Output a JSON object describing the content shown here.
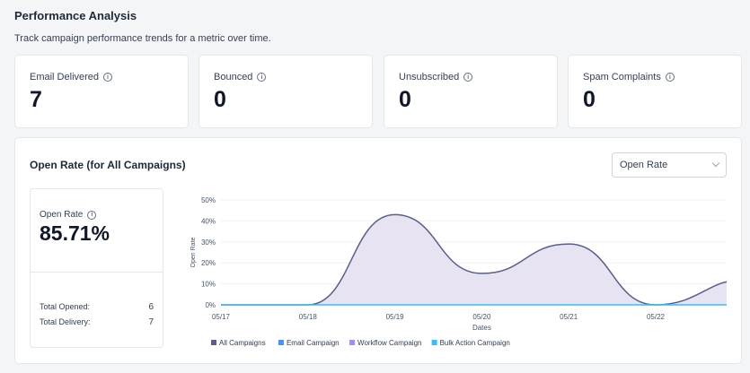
{
  "header": {
    "title": "Performance Analysis",
    "subtitle": "Track campaign performance trends for a metric over time."
  },
  "metrics": [
    {
      "label": "Email Delivered",
      "value": "7"
    },
    {
      "label": "Bounced",
      "value": "0"
    },
    {
      "label": "Unsubscribed",
      "value": "0"
    },
    {
      "label": "Spam Complaints",
      "value": "0"
    }
  ],
  "chart_section": {
    "title": "Open Rate (for All Campaigns)",
    "select_value": "Open Rate"
  },
  "summary": {
    "label": "Open Rate",
    "value": "85.71%",
    "total_opened_label": "Total Opened:",
    "total_opened_value": "6",
    "total_delivery_label": "Total Delivery:",
    "total_delivery_value": "7"
  },
  "chart_data": {
    "type": "area",
    "x": [
      "05/17",
      "05/18",
      "05/19",
      "05/20",
      "05/21",
      "05/22"
    ],
    "xlabel": "Dates",
    "ylabel": "Open Rate",
    "yticks": [
      "0%",
      "10%",
      "20%",
      "30%",
      "40%",
      "50%"
    ],
    "ylim": [
      0,
      50
    ],
    "grid": true,
    "legend_position": "bottom",
    "series": [
      {
        "name": "All Campaigns",
        "color": "#5b5f87",
        "values": [
          0,
          0,
          43,
          15,
          29,
          0
        ]
      },
      {
        "name": "Email Campaign",
        "color": "#4f8ff7",
        "values": [
          0,
          0,
          0,
          0,
          0,
          0
        ]
      },
      {
        "name": "Workflow Campaign",
        "color": "#a78bfa",
        "values": [
          0,
          0,
          0,
          0,
          0,
          0
        ]
      },
      {
        "name": "Bulk Action Campaign",
        "color": "#38bdf8",
        "values": [
          0,
          0,
          0,
          0,
          0,
          0
        ]
      }
    ],
    "trailing_value": 11
  }
}
